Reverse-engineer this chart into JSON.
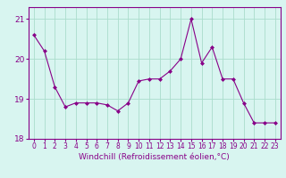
{
  "x": [
    0,
    1,
    2,
    3,
    4,
    5,
    6,
    7,
    8,
    9,
    10,
    11,
    12,
    13,
    14,
    15,
    16,
    17,
    18,
    19,
    20,
    21,
    22,
    23
  ],
  "y": [
    20.6,
    20.2,
    19.3,
    18.8,
    18.9,
    18.9,
    18.9,
    18.85,
    18.7,
    18.9,
    19.45,
    19.5,
    19.5,
    19.7,
    20.0,
    21.0,
    19.9,
    20.3,
    19.5,
    19.5,
    18.9,
    18.4,
    18.4,
    18.4
  ],
  "line_color": "#880088",
  "marker": "D",
  "marker_size": 2,
  "bg_color": "#d8f5f0",
  "grid_color": "#aaddcc",
  "xlabel": "Windchill (Refroidissement éolien,°C)",
  "xlabel_fontsize": 6.5,
  "xlim": [
    -0.5,
    23.5
  ],
  "ylim": [
    18.0,
    21.3
  ],
  "yticks": [
    18,
    19,
    20,
    21
  ],
  "xtick_fontsize": 5.5,
  "ytick_fontsize": 6.5
}
